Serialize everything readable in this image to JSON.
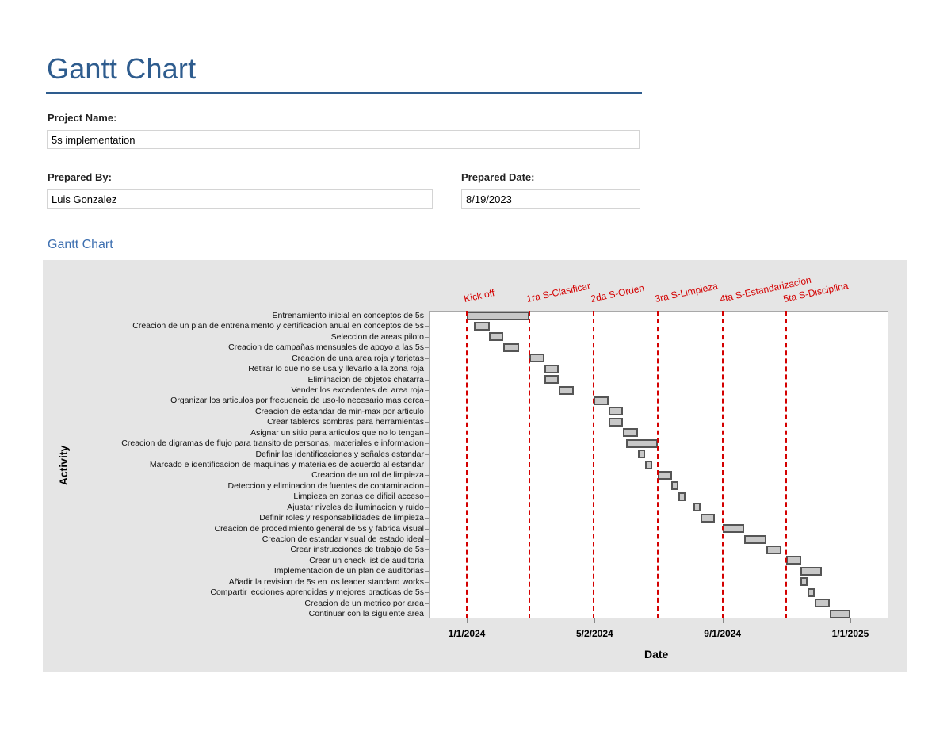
{
  "header": {
    "title": "Gantt Chart",
    "accent_color": "#2e5c8e"
  },
  "form": {
    "project_name_label": "Project Name:",
    "project_name_value": "5s implementation",
    "prepared_by_label": "Prepared By:",
    "prepared_by_value": "Luis Gonzalez",
    "prepared_date_label": "Prepared Date:",
    "prepared_date_value": "8/19/2023"
  },
  "section": {
    "title": "Gantt Chart"
  },
  "chart_data": {
    "type": "bar",
    "subtype": "gantt",
    "title": "",
    "xlabel": "Date",
    "ylabel": "Activity",
    "x_ticks": [
      "1/1/2024",
      "5/2/2024",
      "9/1/2024",
      "1/1/2025"
    ],
    "x_range": [
      "2023-12-01",
      "2025-02-01"
    ],
    "grid": false,
    "bar_color": "#c8c8c8",
    "bar_edge_color": "#555555",
    "milestone_color": "#d40000",
    "milestones": [
      {
        "label": "Kick off",
        "date": "2024-01-01"
      },
      {
        "label": "1ra S-Clasificar",
        "date": "2024-03-01"
      },
      {
        "label": "2da S-Orden",
        "date": "2024-05-01"
      },
      {
        "label": "3ra S-Limpieza",
        "date": "2024-07-01"
      },
      {
        "label": "4ta S-Estandarizacion",
        "date": "2024-09-01"
      },
      {
        "label": "5ta S-Disciplina",
        "date": "2024-11-01"
      }
    ],
    "tasks": [
      {
        "name": "Entrenamiento inicial en conceptos de 5s",
        "start": "2024-01-01",
        "end": "2024-03-01"
      },
      {
        "name": "Creacion de un plan de entrenaimento y certificacion anual en conceptos de 5s",
        "start": "2024-01-08",
        "end": "2024-01-23"
      },
      {
        "name": "Seleccion de areas piloto",
        "start": "2024-01-22",
        "end": "2024-02-05"
      },
      {
        "name": "Creacion de campañas mensuales de apoyo a las 5s",
        "start": "2024-02-05",
        "end": "2024-02-20"
      },
      {
        "name": "Creacion de una area roja y tarjetas",
        "start": "2024-03-01",
        "end": "2024-03-15"
      },
      {
        "name": "Retirar lo que no se usa y llevarlo a la zona roja",
        "start": "2024-03-15",
        "end": "2024-03-29"
      },
      {
        "name": "Eliminacion de objetos chatarra",
        "start": "2024-03-15",
        "end": "2024-03-29"
      },
      {
        "name": "Vender los excedentes del area roja",
        "start": "2024-03-29",
        "end": "2024-04-12"
      },
      {
        "name": "Organizar los articulos por frecuencia de uso-lo necesario mas cerca",
        "start": "2024-05-01",
        "end": "2024-05-15"
      },
      {
        "name": "Creacion de estandar de min-max por articulo",
        "start": "2024-05-15",
        "end": "2024-05-29"
      },
      {
        "name": "Crear tableros sombras para herramientas",
        "start": "2024-05-15",
        "end": "2024-05-29"
      },
      {
        "name": "Asignar un sitio para articulos que no lo tengan",
        "start": "2024-05-29",
        "end": "2024-06-12"
      },
      {
        "name": "Creacion de digramas de flujo para transito de personas, materiales e informacion",
        "start": "2024-06-01",
        "end": "2024-07-01"
      },
      {
        "name": "Definir las identificaciones y señales estandar",
        "start": "2024-06-12",
        "end": "2024-06-19"
      },
      {
        "name": "Marcado e identificacion de maquinas y materiales de acuerdo al estandar",
        "start": "2024-06-19",
        "end": "2024-06-26"
      },
      {
        "name": "Creacion de un rol de limpieza",
        "start": "2024-07-01",
        "end": "2024-07-15"
      },
      {
        "name": "Deteccion y eliminacion de fuentes de contaminacion",
        "start": "2024-07-14",
        "end": "2024-07-21"
      },
      {
        "name": "Limpieza en zonas de dificil acceso",
        "start": "2024-07-21",
        "end": "2024-07-28"
      },
      {
        "name": "Ajustar niveles de iluminacion y ruido",
        "start": "2024-08-04",
        "end": "2024-08-11"
      },
      {
        "name": "Definir roles y responsabilidades de limpieza",
        "start": "2024-08-11",
        "end": "2024-08-25"
      },
      {
        "name": "Creacion de procedimiento general de 5s y fabrica visual",
        "start": "2024-09-01",
        "end": "2024-09-22"
      },
      {
        "name": "Creacion de estandar visual de estado ideal",
        "start": "2024-09-22",
        "end": "2024-10-13"
      },
      {
        "name": "Crear instrucciones de trabajo de 5s",
        "start": "2024-10-13",
        "end": "2024-10-27"
      },
      {
        "name": "Crear un check list de auditoria",
        "start": "2024-11-01",
        "end": "2024-11-15"
      },
      {
        "name": "Implementacion de un plan de auditorias",
        "start": "2024-11-14",
        "end": "2024-12-05"
      },
      {
        "name": "Añadir la revision de 5s en los leader standard works",
        "start": "2024-11-14",
        "end": "2024-11-21"
      },
      {
        "name": "Compartir lecciones aprendidas y mejores practicas de 5s",
        "start": "2024-11-21",
        "end": "2024-11-28"
      },
      {
        "name": "Creacion de un metrico por area",
        "start": "2024-11-28",
        "end": "2024-12-12"
      },
      {
        "name": "Continuar con la siguiente area",
        "start": "2024-12-12",
        "end": "2025-01-01"
      }
    ]
  }
}
